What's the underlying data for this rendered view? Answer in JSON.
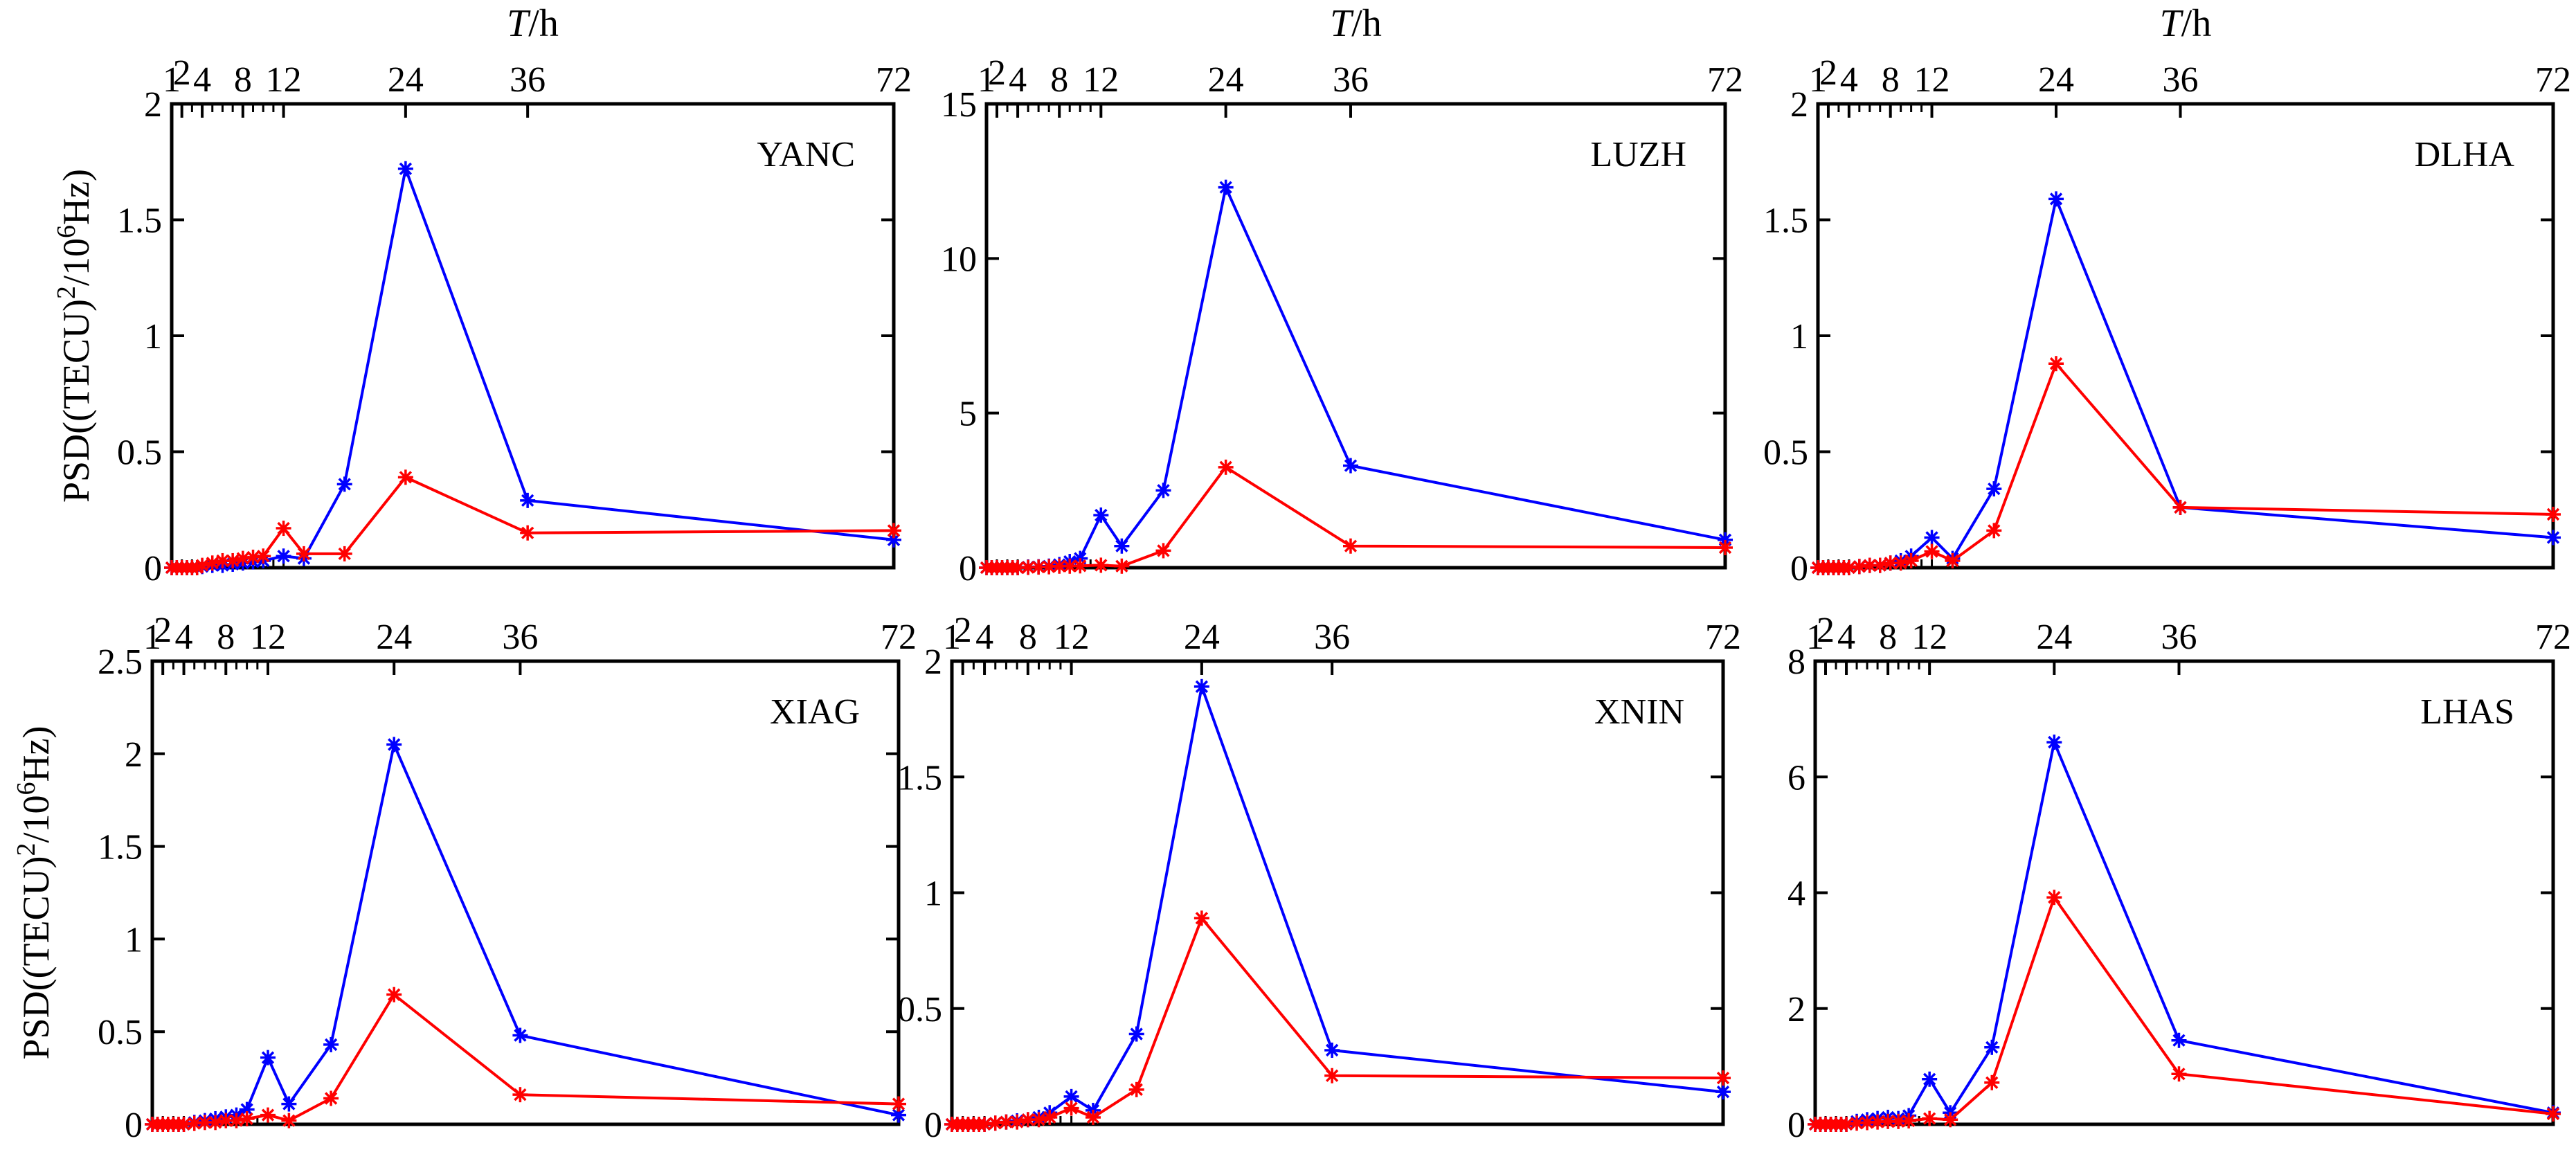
{
  "figure": {
    "top_axis_label_italic": "T",
    "top_axis_label_unit": "/h",
    "ylabel_prefix": "PSD((TECU)",
    "ylabel_sup1": "2",
    "ylabel_mid": "/10",
    "ylabel_sup2": "6",
    "ylabel_suffix": "Hz)"
  },
  "colors": {
    "series_a": "#0000ff",
    "series_b": "#ff0000",
    "axis": "#000000"
  },
  "chart_data": [
    {
      "type": "line",
      "title": "YANC",
      "show_top_label": true,
      "show_ylabel": true,
      "xlim": [
        1,
        72
      ],
      "top_ticks": [
        1,
        2,
        4,
        8,
        12,
        24,
        36,
        72
      ],
      "ylim": [
        0,
        2
      ],
      "yticks": [
        0,
        0.5,
        1,
        1.5,
        2
      ],
      "ytick_labels": [
        "0",
        "0.5",
        "1",
        "1.5",
        "2"
      ],
      "x": [
        1,
        1.5,
        2,
        2.5,
        3,
        3.5,
        4,
        5,
        6,
        7,
        8,
        9,
        10,
        12,
        14,
        18,
        24,
        36,
        72
      ],
      "series": [
        {
          "color": "#0000ff",
          "values": [
            0,
            0,
            0,
            0,
            0,
            0,
            0.005,
            0.01,
            0.01,
            0.015,
            0.02,
            0.025,
            0.03,
            0.05,
            0.04,
            0.36,
            1.72,
            0.29,
            0.12
          ]
        },
        {
          "color": "#ff0000",
          "values": [
            0,
            0,
            0,
            0,
            0,
            0,
            0.01,
            0.02,
            0.03,
            0.03,
            0.04,
            0.045,
            0.05,
            0.17,
            0.06,
            0.06,
            0.39,
            0.15,
            0.16
          ]
        }
      ]
    },
    {
      "type": "line",
      "title": "LUZH",
      "show_top_label": true,
      "show_ylabel": false,
      "xlim": [
        1,
        72
      ],
      "top_ticks": [
        1,
        2,
        4,
        8,
        12,
        24,
        36,
        72
      ],
      "ylim": [
        0,
        15
      ],
      "yticks": [
        0,
        5,
        10,
        15
      ],
      "ytick_labels": [
        "0",
        "5",
        "10",
        "15"
      ],
      "x": [
        1,
        1.5,
        2,
        2.5,
        3,
        3.5,
        4,
        5,
        6,
        7,
        8,
        9,
        10,
        12,
        14,
        18,
        24,
        36,
        72
      ],
      "series": [
        {
          "color": "#0000ff",
          "values": [
            0,
            0,
            0,
            0,
            0,
            0,
            0,
            0.02,
            0.03,
            0.05,
            0.1,
            0.2,
            0.3,
            1.7,
            0.7,
            2.5,
            12.3,
            3.3,
            0.9
          ]
        },
        {
          "color": "#ff0000",
          "values": [
            0,
            0,
            0,
            0,
            0,
            0,
            0,
            0.01,
            0.02,
            0.03,
            0.05,
            0.05,
            0.06,
            0.08,
            0.05,
            0.55,
            3.25,
            0.7,
            0.65
          ]
        }
      ]
    },
    {
      "type": "line",
      "title": "DLHA",
      "show_top_label": true,
      "show_ylabel": false,
      "xlim": [
        1,
        72
      ],
      "top_ticks": [
        1,
        2,
        4,
        8,
        12,
        24,
        36,
        72
      ],
      "ylim": [
        0,
        2
      ],
      "yticks": [
        0,
        0.5,
        1,
        1.5,
        2
      ],
      "ytick_labels": [
        "0",
        "0.5",
        "1",
        "1.5",
        "2"
      ],
      "x": [
        1,
        1.5,
        2,
        2.5,
        3,
        3.5,
        4,
        5,
        6,
        7,
        8,
        9,
        10,
        12,
        14,
        18,
        24,
        36,
        72
      ],
      "series": [
        {
          "color": "#0000ff",
          "values": [
            0,
            0,
            0,
            0,
            0,
            0,
            0,
            0.005,
            0.01,
            0.01,
            0.02,
            0.03,
            0.05,
            0.13,
            0.04,
            0.34,
            1.59,
            0.26,
            0.13
          ]
        },
        {
          "color": "#ff0000",
          "values": [
            0,
            0,
            0,
            0,
            0,
            0,
            0,
            0.005,
            0.01,
            0.01,
            0.02,
            0.02,
            0.03,
            0.07,
            0.03,
            0.16,
            0.88,
            0.26,
            0.23
          ]
        }
      ]
    },
    {
      "type": "line",
      "title": "XIAG",
      "show_top_label": false,
      "show_ylabel": true,
      "xlim": [
        1,
        72
      ],
      "top_ticks": [
        1,
        2,
        4,
        8,
        12,
        24,
        36,
        72
      ],
      "ylim": [
        0,
        2.5
      ],
      "yticks": [
        0,
        0.5,
        1,
        1.5,
        2,
        2.5
      ],
      "ytick_labels": [
        "0",
        "0.5",
        "1",
        "1.5",
        "2",
        "2.5"
      ],
      "x": [
        1,
        1.5,
        2,
        2.5,
        3,
        3.5,
        4,
        5,
        6,
        7,
        8,
        9,
        10,
        12,
        14,
        18,
        24,
        36,
        72
      ],
      "series": [
        {
          "color": "#0000ff",
          "values": [
            0,
            0,
            0,
            0,
            0,
            0,
            0,
            0.01,
            0.02,
            0.03,
            0.04,
            0.05,
            0.08,
            0.36,
            0.11,
            0.43,
            2.05,
            0.48,
            0.05
          ]
        },
        {
          "color": "#ff0000",
          "values": [
            0,
            0,
            0,
            0,
            0,
            0,
            0,
            0.005,
            0.01,
            0.01,
            0.02,
            0.02,
            0.03,
            0.05,
            0.02,
            0.14,
            0.7,
            0.16,
            0.11
          ]
        }
      ]
    },
    {
      "type": "line",
      "title": "XNIN",
      "show_top_label": false,
      "show_ylabel": false,
      "xlim": [
        1,
        72
      ],
      "top_ticks": [
        1,
        2,
        4,
        8,
        12,
        24,
        36,
        72
      ],
      "ylim": [
        0,
        2
      ],
      "yticks": [
        0,
        0.5,
        1,
        1.5,
        2
      ],
      "ytick_labels": [
        "0",
        "0.5",
        "1",
        "1.5",
        "2"
      ],
      "x": [
        1,
        1.5,
        2,
        2.5,
        3,
        3.5,
        4,
        5,
        6,
        7,
        8,
        9,
        10,
        12,
        14,
        18,
        24,
        36,
        72
      ],
      "series": [
        {
          "color": "#0000ff",
          "values": [
            0,
            0,
            0,
            0,
            0,
            0,
            0,
            0.005,
            0.01,
            0.015,
            0.02,
            0.03,
            0.05,
            0.12,
            0.06,
            0.39,
            1.89,
            0.32,
            0.14
          ]
        },
        {
          "color": "#ff0000",
          "values": [
            0,
            0,
            0,
            0,
            0,
            0,
            0,
            0.005,
            0.01,
            0.01,
            0.02,
            0.02,
            0.03,
            0.07,
            0.03,
            0.15,
            0.89,
            0.21,
            0.2
          ]
        }
      ]
    },
    {
      "type": "line",
      "title": "LHAS",
      "show_top_label": false,
      "show_ylabel": false,
      "xlim": [
        1,
        72
      ],
      "top_ticks": [
        1,
        2,
        4,
        8,
        12,
        24,
        36,
        72
      ],
      "ylim": [
        0,
        8
      ],
      "yticks": [
        0,
        2,
        4,
        6,
        8
      ],
      "ytick_labels": [
        "0",
        "2",
        "4",
        "6",
        "8"
      ],
      "x": [
        1,
        1.5,
        2,
        2.5,
        3,
        3.5,
        4,
        5,
        6,
        7,
        8,
        9,
        10,
        12,
        14,
        18,
        24,
        36,
        72
      ],
      "series": [
        {
          "color": "#0000ff",
          "values": [
            0,
            0,
            0,
            0,
            0,
            0,
            0,
            0.05,
            0.08,
            0.1,
            0.12,
            0.1,
            0.15,
            0.78,
            0.2,
            1.33,
            6.6,
            1.45,
            0.2
          ]
        },
        {
          "color": "#ff0000",
          "values": [
            0,
            0,
            0,
            0,
            0,
            0,
            0,
            0.02,
            0.03,
            0.04,
            0.05,
            0.05,
            0.06,
            0.1,
            0.08,
            0.72,
            3.92,
            0.87,
            0.18
          ]
        }
      ]
    }
  ]
}
